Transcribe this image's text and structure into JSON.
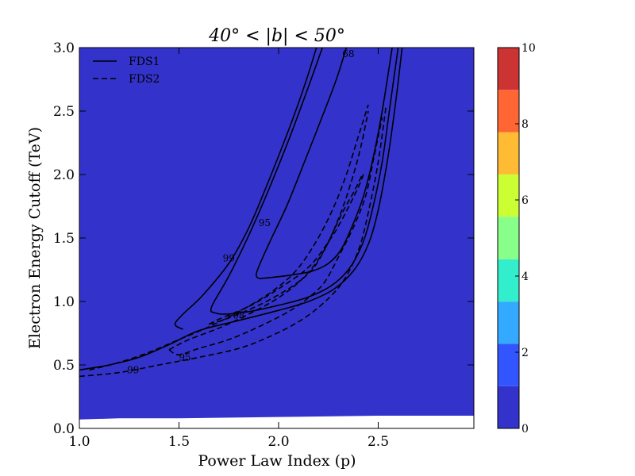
{
  "chart_data": {
    "type": "contour",
    "title": "40° < |b| < 50°",
    "xlabel": "Power Law Index (p)",
    "ylabel": "Electron Energy Cutoff (TeV)",
    "xlim": [
      1.0,
      2.98
    ],
    "ylim": [
      0.0,
      3.0
    ],
    "x_ticks": [
      1.0,
      1.5,
      2.0,
      2.5
    ],
    "x_tick_labels": [
      "1.0",
      "1.5",
      "2.0",
      "2.5"
    ],
    "y_ticks": [
      0.0,
      0.5,
      1.0,
      1.5,
      2.0,
      2.5,
      3.0
    ],
    "y_tick_labels": [
      "0.0",
      "0.5",
      "1.0",
      "1.5",
      "2.0",
      "2.5",
      "3.0"
    ],
    "grid": false,
    "background_color": "#3333cc",
    "lower_band": {
      "color": "#ffffff",
      "points": [
        [
          1.0,
          0.07
        ],
        [
          1.2,
          0.08
        ],
        [
          1.5,
          0.08
        ],
        [
          2.0,
          0.09
        ],
        [
          2.5,
          0.1
        ],
        [
          2.98,
          0.1
        ]
      ]
    },
    "colorbar": {
      "range": [
        0,
        10
      ],
      "ticks": [
        0,
        2,
        4,
        6,
        8,
        10
      ],
      "tick_labels": [
        "0",
        "2",
        "4",
        "6",
        "8",
        "10"
      ],
      "bands": [
        {
          "from": 0,
          "to": 1.11,
          "color": "#3333cc"
        },
        {
          "from": 1.11,
          "to": 2.22,
          "color": "#3355ff"
        },
        {
          "from": 2.22,
          "to": 3.33,
          "color": "#33aaff"
        },
        {
          "from": 3.33,
          "to": 4.44,
          "color": "#33eecc"
        },
        {
          "from": 4.44,
          "to": 5.56,
          "color": "#88ff88"
        },
        {
          "from": 5.56,
          "to": 6.67,
          "color": "#ccff33"
        },
        {
          "from": 6.67,
          "to": 7.78,
          "color": "#ffbb33"
        },
        {
          "from": 7.78,
          "to": 8.89,
          "color": "#ff6633"
        },
        {
          "from": 8.89,
          "to": 10,
          "color": "#cc3333"
        }
      ]
    },
    "legend": {
      "placement": "top-left",
      "entries": [
        {
          "label": "FDS1",
          "style": "solid"
        },
        {
          "label": "FDS2",
          "style": "dashed"
        }
      ]
    },
    "series": [
      {
        "name": "FDS1",
        "style": "solid",
        "contours": [
          {
            "level": "68",
            "points": [
              [
                1.9,
                1.18
              ],
              [
                1.97,
                1.19
              ],
              [
                2.07,
                1.21
              ],
              [
                2.17,
                1.24
              ],
              [
                2.25,
                1.3
              ],
              [
                2.31,
                1.4
              ],
              [
                2.36,
                1.56
              ],
              [
                2.42,
                1.8
              ],
              [
                2.47,
                2.1
              ],
              [
                2.52,
                2.5
              ],
              [
                2.57,
                3.0
              ]
            ]
          },
          {
            "level": "68",
            "points": [
              [
                1.9,
                1.18
              ],
              [
                1.89,
                1.23
              ],
              [
                1.95,
                1.45
              ],
              [
                2.04,
                1.75
              ],
              [
                2.13,
                2.1
              ],
              [
                2.21,
                2.42
              ],
              [
                2.29,
                2.75
              ],
              [
                2.34,
                3.0
              ]
            ]
          },
          {
            "level": "95",
            "points": [
              [
                1.66,
                0.92
              ],
              [
                1.72,
                0.9
              ],
              [
                1.85,
                0.92
              ],
              [
                2.0,
                0.97
              ],
              [
                2.14,
                1.03
              ],
              [
                2.26,
                1.12
              ],
              [
                2.35,
                1.25
              ],
              [
                2.42,
                1.45
              ],
              [
                2.47,
                1.72
              ],
              [
                2.52,
                2.1
              ],
              [
                2.56,
                2.55
              ],
              [
                2.6,
                3.0
              ]
            ]
          },
          {
            "level": "95",
            "points": [
              [
                1.66,
                0.92
              ],
              [
                1.67,
                0.98
              ],
              [
                1.75,
                1.2
              ],
              [
                1.85,
                1.52
              ],
              [
                1.95,
                1.88
              ],
              [
                2.05,
                2.27
              ],
              [
                2.14,
                2.65
              ],
              [
                2.22,
                3.0
              ]
            ]
          },
          {
            "level": "99",
            "points": [
              [
                1.0,
                0.46
              ],
              [
                1.15,
                0.5
              ],
              [
                1.3,
                0.56
              ],
              [
                1.45,
                0.66
              ],
              [
                1.6,
                0.77
              ],
              [
                1.8,
                0.85
              ],
              [
                2.0,
                0.93
              ],
              [
                2.15,
                1.0
              ],
              [
                2.28,
                1.1
              ],
              [
                2.38,
                1.25
              ],
              [
                2.45,
                1.45
              ],
              [
                2.5,
                1.72
              ],
              [
                2.55,
                2.15
              ],
              [
                2.59,
                2.6
              ],
              [
                2.62,
                3.0
              ]
            ]
          },
          {
            "level": "99",
            "points": [
              [
                1.52,
                0.78
              ],
              [
                1.48,
                0.82
              ],
              [
                1.52,
                0.9
              ],
              [
                1.62,
                1.05
              ],
              [
                1.75,
                1.3
              ],
              [
                1.85,
                1.58
              ],
              [
                1.95,
                1.95
              ],
              [
                2.05,
                2.35
              ],
              [
                2.13,
                2.7
              ],
              [
                2.19,
                3.0
              ]
            ]
          }
        ]
      },
      {
        "name": "FDS2",
        "style": "dashed",
        "contours": [
          {
            "level": "68",
            "points": [
              [
                1.65,
                0.82
              ],
              [
                1.75,
                0.87
              ],
              [
                1.9,
                0.97
              ],
              [
                2.05,
                1.1
              ],
              [
                2.15,
                1.22
              ],
              [
                2.2,
                1.32
              ],
              [
                2.25,
                1.47
              ],
              [
                2.32,
                1.7
              ],
              [
                2.38,
                1.87
              ],
              [
                2.42,
                2.0
              ]
            ]
          },
          {
            "level": "68",
            "points": [
              [
                1.65,
                0.82
              ],
              [
                1.7,
                0.86
              ],
              [
                1.85,
                0.96
              ],
              [
                2.0,
                1.1
              ],
              [
                2.15,
                1.27
              ],
              [
                2.25,
                1.47
              ],
              [
                2.32,
                1.65
              ],
              [
                2.4,
                1.9
              ],
              [
                2.43,
                2.02
              ]
            ]
          },
          {
            "level": "95",
            "points": [
              [
                1.45,
                0.62
              ],
              [
                1.5,
                0.58
              ],
              [
                1.6,
                0.63
              ],
              [
                1.75,
                0.7
              ],
              [
                1.9,
                0.8
              ],
              [
                2.05,
                0.92
              ],
              [
                2.15,
                1.03
              ],
              [
                2.23,
                1.15
              ],
              [
                2.3,
                1.35
              ],
              [
                2.38,
                1.6
              ],
              [
                2.44,
                1.85
              ],
              [
                2.48,
                2.15
              ],
              [
                2.52,
                2.45
              ]
            ]
          },
          {
            "level": "95",
            "points": [
              [
                1.45,
                0.62
              ],
              [
                1.55,
                0.7
              ],
              [
                1.7,
                0.79
              ],
              [
                1.85,
                0.9
              ],
              [
                2.0,
                1.03
              ],
              [
                2.12,
                1.18
              ],
              [
                2.22,
                1.38
              ],
              [
                2.3,
                1.65
              ],
              [
                2.36,
                1.92
              ],
              [
                2.41,
                2.2
              ],
              [
                2.45,
                2.5
              ]
            ]
          },
          {
            "level": "99",
            "points": [
              [
                1.0,
                0.41
              ],
              [
                1.2,
                0.44
              ],
              [
                1.4,
                0.5
              ],
              [
                1.6,
                0.56
              ],
              [
                1.8,
                0.63
              ],
              [
                1.95,
                0.72
              ],
              [
                2.1,
                0.84
              ],
              [
                2.22,
                0.98
              ],
              [
                2.32,
                1.15
              ],
              [
                2.4,
                1.4
              ],
              [
                2.45,
                1.7
              ],
              [
                2.5,
                2.1
              ],
              [
                2.54,
                2.55
              ]
            ]
          },
          {
            "level": "99",
            "points": [
              [
                1.05,
                0.46
              ],
              [
                1.2,
                0.52
              ],
              [
                1.35,
                0.6
              ],
              [
                1.5,
                0.7
              ],
              [
                1.65,
                0.8
              ],
              [
                1.8,
                0.92
              ],
              [
                1.95,
                1.06
              ],
              [
                2.08,
                1.23
              ],
              [
                2.18,
                1.45
              ],
              [
                2.27,
                1.72
              ],
              [
                2.34,
                2.0
              ],
              [
                2.4,
                2.3
              ],
              [
                2.45,
                2.55
              ]
            ]
          }
        ]
      }
    ],
    "contour_labels": [
      {
        "text": "68",
        "x": 2.35,
        "y": 2.95
      },
      {
        "text": "95",
        "x": 1.93,
        "y": 1.62
      },
      {
        "text": "99",
        "x": 1.75,
        "y": 1.34
      },
      {
        "text": "68",
        "x": 1.8,
        "y": 0.89
      },
      {
        "text": "95",
        "x": 1.53,
        "y": 0.56
      },
      {
        "text": "99",
        "x": 1.27,
        "y": 0.46
      }
    ]
  }
}
